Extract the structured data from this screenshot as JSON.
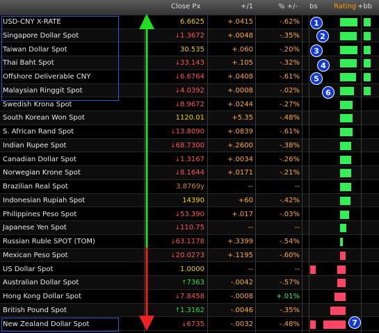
{
  "header": {
    "close_px": "Close Px",
    "chg": "+/1",
    "pct": "% +/-",
    "col_bs": "bs",
    "rating": "Rating",
    "rating_suffix": "+bb"
  },
  "colors": {
    "up_bar": "#33ee55",
    "down_bar": "#ff4466",
    "box_outline": "#2a5cd6",
    "badge_fill": "#1338d8",
    "arrow_green": "#22dd22",
    "arrow_red": "#ee2222"
  },
  "rows": [
    {
      "name": "USD-CNY X-RATE",
      "close": "6.6625",
      "close_dir": "nochg",
      "chg": "+.0415",
      "pct": "-.62%",
      "bar": "up",
      "bar_w": 0.63,
      "bar2": true
    },
    {
      "name": "Singapore Dollar Spot",
      "close": "1.3672",
      "close_dir": "down",
      "chg": "+.0048",
      "pct": "-.35%",
      "bar": "up",
      "bar_w": 0.6,
      "bar2": true
    },
    {
      "name": "Taiwan Dollar Spot",
      "close": "30.535",
      "close_dir": "nochg",
      "chg": "+.060",
      "pct": "-.20%",
      "bar": "up",
      "bar_w": 0.62,
      "bar2": true
    },
    {
      "name": "Thai Baht Spot",
      "close": "33.143",
      "close_dir": "down",
      "chg": "+.105",
      "pct": "-.32%",
      "bar": "up",
      "bar_w": 0.6,
      "bar2": true
    },
    {
      "name": "Offshore Deliverable CNY",
      "close": "6.6764",
      "close_dir": "down",
      "chg": "+.0408",
      "pct": "-.61%",
      "bar": "up",
      "bar_w": 0.58,
      "bar2": true
    },
    {
      "name": "Malaysian Ringgit Spot",
      "close": "4.0392",
      "close_dir": "down",
      "chg": "+.0008",
      "pct": "-.02%",
      "bar": "up",
      "bar_w": 0.5,
      "bar2": true
    },
    {
      "name": "Swedish Krona Spot",
      "close": "8.9672",
      "close_dir": "down",
      "chg": "+.0244",
      "pct": "-.27%",
      "bar": "up",
      "bar_w": 0.45,
      "bar2": false
    },
    {
      "name": "South Korean Won Spot",
      "close": "1120.01",
      "close_dir": "nochg",
      "chg": "+5.35",
      "pct": "-.48%",
      "bar": "up",
      "bar_w": 0.45,
      "bar2": false
    },
    {
      "name": "S. African Rand Spot",
      "close": "13.8090",
      "close_dir": "down",
      "chg": "+.0839",
      "pct": "-.61%",
      "bar": "up",
      "bar_w": 0.45,
      "bar2": false
    },
    {
      "name": "Indian Rupee Spot",
      "close": "68.7300",
      "close_dir": "down",
      "chg": "+.2600",
      "pct": "-.38%",
      "bar": "up",
      "bar_w": 0.4,
      "bar2": false
    },
    {
      "name": "Canadian Dollar Spot",
      "close": "1.3167",
      "close_dir": "down",
      "chg": "+.0034",
      "pct": "-.26%",
      "bar": "up",
      "bar_w": 0.4,
      "bar2": false
    },
    {
      "name": "Norwegian Krone Spot",
      "close": "8.1644",
      "close_dir": "down",
      "chg": "+.0171",
      "pct": "-.21%",
      "bar": "up",
      "bar_w": 0.4,
      "bar2": false
    },
    {
      "name": "Brazilian Real Spot",
      "close": "3.8769y",
      "close_dir": "nochg_dim",
      "chg": "--",
      "pct": "--",
      "bar": "up",
      "bar_w": 0.4,
      "bar2": false
    },
    {
      "name": "Indonesian Rupiah Spot",
      "close": "14390",
      "close_dir": "nochg",
      "chg": "+60",
      "pct": "-.42%",
      "bar": "up",
      "bar_w": 0.38,
      "bar2": false
    },
    {
      "name": "Philippines Peso Spot",
      "close": "53.390",
      "close_dir": "down",
      "chg": "+.017",
      "pct": "-.03%",
      "bar": "up",
      "bar_w": 0.33,
      "bar2": false
    },
    {
      "name": "Japanese Yen Spot",
      "close": "110.75",
      "close_dir": "down",
      "chg": "--",
      "pct": "--",
      "bar": "up",
      "bar_w": 0.22,
      "bar2": false
    },
    {
      "name": "Russian Ruble SPOT (TOM)",
      "close": "63.1178",
      "close_dir": "down",
      "chg": "+.3399",
      "pct": "-.54%",
      "bar": "up",
      "bar_w": 0.1,
      "bar2": false
    },
    {
      "name": "Mexican Peso Spot",
      "close": "20.0273",
      "close_dir": "down",
      "chg": "+.1195",
      "pct": "-.60%",
      "bar": "down",
      "bar_w": 0.2,
      "bar2": false
    },
    {
      "name": "US Dollar Spot",
      "close": "1.0000",
      "close_dir": "nochg",
      "chg": "--",
      "pct": "--",
      "bar": "down",
      "bar_w": 0.3,
      "bar2": true
    },
    {
      "name": "Australian Dollar Spot",
      "close": "7363",
      "close_dir": "up",
      "chg": "-.0042",
      "pct": "-.57%",
      "bar": "down",
      "bar_w": 0.3,
      "bar2": false
    },
    {
      "name": "Hong Kong Dollar Spot",
      "close": "7.8458",
      "close_dir": "down",
      "chg": "-.0008",
      "pct": "+.01%",
      "bar": "down",
      "bar_w": 0.4,
      "bar2": false,
      "pct_pos": true
    },
    {
      "name": "British Pound Spot",
      "close": "1.3162",
      "close_dir": "up",
      "chg": "-.0046",
      "pct": "-.35%",
      "bar": "down",
      "bar_w": 0.55,
      "bar2": false
    },
    {
      "name": "New Zealand Dollar Spot",
      "close": "6735",
      "close_dir": "down",
      "chg": "-.0032",
      "pct": "-.48%",
      "bar": "down",
      "bar_w": 0.8,
      "bar2": true
    }
  ],
  "badges": [
    "1",
    "2",
    "3",
    "4",
    "5",
    "6",
    "7"
  ]
}
